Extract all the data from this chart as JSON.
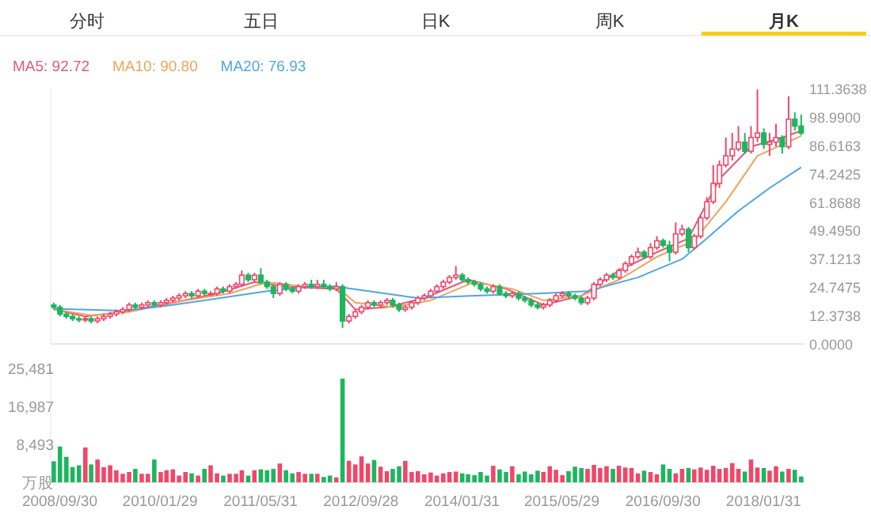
{
  "chart_data": [
    {
      "type": "candlestick",
      "annotations": [
        "分时",
        "五日",
        "日K",
        "周K",
        "月K"
      ],
      "legend": "top left",
      "tick_labels": "y",
      "xlim": [
        "2008-08-17",
        "2018-08-17"
      ],
      "ylim": [
        0,
        111.3638
      ],
      "yticks": [
        {
          "value": 0,
          "label": "0.0000"
        },
        {
          "value": 12.3738,
          "label": "12.3738"
        },
        {
          "value": 24.7475,
          "label": "24.7475"
        },
        {
          "value": 37.1213,
          "label": "37.1213"
        },
        {
          "value": 49.495,
          "label": "49.4950"
        },
        {
          "value": 61.8688,
          "label": "61.8688"
        },
        {
          "value": 74.2425,
          "label": "74.2425"
        },
        {
          "value": 86.6163,
          "label": "86.6163"
        },
        {
          "value": 98.99,
          "label": "98.9900"
        },
        {
          "value": 111.3638,
          "label": "111.3638"
        }
      ],
      "x": [
        "2008-09",
        "2008-10",
        "2008-11",
        "2008-12",
        "2009-01",
        "2009-02",
        "2009-03",
        "2009-04",
        "2009-05",
        "2009-06",
        "2009-07",
        "2009-08",
        "2009-09",
        "2009-10",
        "2009-11",
        "2009-12",
        "2010-01",
        "2010-02",
        "2010-03",
        "2010-04",
        "2010-05",
        "2010-06",
        "2010-07",
        "2010-08",
        "2010-09",
        "2010-10",
        "2010-11",
        "2010-12",
        "2011-01",
        "2011-02",
        "2011-03",
        "2011-04",
        "2011-05",
        "2011-06",
        "2011-07",
        "2011-08",
        "2011-09",
        "2011-10",
        "2011-11",
        "2011-12",
        "2012-01",
        "2012-02",
        "2012-03",
        "2012-04",
        "2012-05",
        "2012-06",
        "2012-07",
        "2012-08",
        "2012-09",
        "2012-10",
        "2012-11",
        "2012-12",
        "2013-01",
        "2013-02",
        "2013-03",
        "2013-04",
        "2013-05",
        "2013-06",
        "2013-07",
        "2013-08",
        "2013-09",
        "2013-10",
        "2013-11",
        "2013-12",
        "2014-01",
        "2014-02",
        "2014-03",
        "2014-04",
        "2014-05",
        "2014-06",
        "2014-07",
        "2014-08",
        "2014-09",
        "2014-10",
        "2014-11",
        "2014-12",
        "2015-01",
        "2015-02",
        "2015-03",
        "2015-04",
        "2015-05",
        "2015-06",
        "2015-07",
        "2015-08",
        "2015-09",
        "2015-10",
        "2015-11",
        "2015-12",
        "2016-01",
        "2016-02",
        "2016-03",
        "2016-04",
        "2016-05",
        "2016-06",
        "2016-07",
        "2016-08",
        "2016-09",
        "2016-10",
        "2016-11",
        "2016-12",
        "2017-01",
        "2017-02",
        "2017-03",
        "2017-04",
        "2017-05",
        "2017-06",
        "2017-07",
        "2017-08",
        "2017-09",
        "2017-10",
        "2017-11",
        "2017-12",
        "2018-01",
        "2018-02",
        "2018-03",
        "2018-04",
        "2018-05",
        "2018-06",
        "2018-07",
        "2018-08"
      ],
      "ohlc": [
        [
          17,
          18,
          15,
          16
        ],
        [
          16,
          17,
          12,
          13
        ],
        [
          13,
          14,
          11,
          12
        ],
        [
          12,
          13,
          10,
          11
        ],
        [
          11,
          12,
          9.5,
          10.5
        ],
        [
          10.5,
          12,
          9.5,
          11
        ],
        [
          11,
          12,
          9,
          10
        ],
        [
          10,
          12,
          9,
          11
        ],
        [
          11,
          13,
          10,
          12
        ],
        [
          12,
          14,
          11,
          13
        ],
        [
          13,
          15,
          12,
          14
        ],
        [
          14,
          16,
          13,
          15
        ],
        [
          15,
          18,
          14,
          17
        ],
        [
          17,
          18,
          15,
          16
        ],
        [
          16,
          18,
          15,
          17
        ],
        [
          17,
          19,
          16,
          18
        ],
        [
          18,
          19,
          16,
          17
        ],
        [
          17,
          19,
          16,
          18
        ],
        [
          18,
          20,
          17,
          19
        ],
        [
          19,
          21,
          18,
          20
        ],
        [
          20,
          22,
          19,
          21
        ],
        [
          21,
          23,
          20,
          22
        ],
        [
          22,
          23,
          20,
          21
        ],
        [
          21,
          24,
          20,
          23
        ],
        [
          23,
          24,
          21,
          22
        ],
        [
          22,
          23,
          21,
          22
        ],
        [
          22,
          25,
          21,
          24
        ],
        [
          24,
          25,
          22,
          23
        ],
        [
          23,
          26,
          22,
          25
        ],
        [
          25,
          27,
          24,
          26
        ],
        [
          26,
          32,
          25,
          30
        ],
        [
          30,
          31,
          27,
          28
        ],
        [
          28,
          31,
          27,
          30
        ],
        [
          30,
          33,
          26,
          27
        ],
        [
          27,
          28,
          24,
          25
        ],
        [
          25,
          26,
          20,
          22
        ],
        [
          22,
          27,
          21,
          26
        ],
        [
          26,
          27,
          23,
          24
        ],
        [
          24,
          25,
          22,
          23
        ],
        [
          23,
          26,
          22,
          25
        ],
        [
          25,
          27,
          24,
          26
        ],
        [
          26,
          28,
          24,
          25
        ],
        [
          25,
          28,
          24,
          26
        ],
        [
          26,
          28,
          24,
          25
        ],
        [
          25,
          26,
          23,
          24
        ],
        [
          24,
          27,
          23,
          25
        ],
        [
          25,
          26,
          7,
          10
        ],
        [
          10,
          13,
          9,
          12
        ],
        [
          12,
          15,
          11,
          14
        ],
        [
          14,
          17,
          13,
          16
        ],
        [
          16,
          19,
          15,
          18
        ],
        [
          18,
          19,
          16,
          17
        ],
        [
          17,
          19,
          16,
          18
        ],
        [
          18,
          20,
          17,
          19
        ],
        [
          19,
          20,
          16,
          17
        ],
        [
          17,
          18,
          14,
          15
        ],
        [
          15,
          17,
          14,
          16
        ],
        [
          16,
          19,
          15,
          18
        ],
        [
          18,
          21,
          17,
          20
        ],
        [
          20,
          22,
          19,
          21
        ],
        [
          21,
          24,
          20,
          23
        ],
        [
          23,
          26,
          22,
          25
        ],
        [
          25,
          28,
          24,
          27
        ],
        [
          27,
          30,
          26,
          29
        ],
        [
          29,
          34,
          28,
          30
        ],
        [
          30,
          31,
          27,
          28
        ],
        [
          28,
          29,
          26,
          27
        ],
        [
          27,
          28,
          25,
          26
        ],
        [
          26,
          27,
          23,
          24
        ],
        [
          24,
          25,
          22,
          23
        ],
        [
          23,
          26,
          22,
          25
        ],
        [
          25,
          26,
          21,
          22
        ],
        [
          22,
          23,
          20,
          21
        ],
        [
          21,
          23,
          20,
          22
        ],
        [
          22,
          23,
          19,
          20
        ],
        [
          20,
          21,
          18,
          19
        ],
        [
          19,
          20,
          16,
          17
        ],
        [
          17,
          18,
          15,
          16
        ],
        [
          16,
          18,
          15,
          17
        ],
        [
          17,
          20,
          16,
          19
        ],
        [
          19,
          22,
          18,
          21
        ],
        [
          21,
          23,
          20,
          22
        ],
        [
          22,
          23,
          20,
          21
        ],
        [
          21,
          22,
          19,
          20
        ],
        [
          20,
          21,
          17,
          18
        ],
        [
          18,
          21,
          17,
          20
        ],
        [
          20,
          27,
          19,
          26
        ],
        [
          26,
          29,
          25,
          28
        ],
        [
          28,
          31,
          27,
          30
        ],
        [
          30,
          31,
          28,
          29
        ],
        [
          29,
          33,
          28,
          32
        ],
        [
          32,
          36,
          31,
          35
        ],
        [
          35,
          39,
          34,
          38
        ],
        [
          38,
          42,
          37,
          40
        ],
        [
          40,
          41,
          37,
          38
        ],
        [
          38,
          44,
          37,
          42
        ],
        [
          42,
          47,
          41,
          45
        ],
        [
          45,
          46,
          42,
          43
        ],
        [
          43,
          45,
          36,
          40
        ],
        [
          40,
          53,
          39,
          48
        ],
        [
          48,
          52,
          47,
          50
        ],
        [
          50,
          51,
          40,
          42
        ],
        [
          42,
          48,
          41,
          47
        ],
        [
          47,
          56,
          46,
          55
        ],
        [
          55,
          64,
          54,
          62
        ],
        [
          62,
          78,
          61,
          70
        ],
        [
          70,
          80,
          68,
          78
        ],
        [
          78,
          90,
          77,
          82
        ],
        [
          82,
          92,
          80,
          85
        ],
        [
          85,
          95,
          84,
          88
        ],
        [
          88,
          92,
          83,
          84
        ],
        [
          84,
          95,
          83,
          90
        ],
        [
          90,
          111,
          88,
          92
        ],
        [
          92,
          94,
          85,
          87
        ],
        [
          87,
          92,
          82,
          88
        ],
        [
          88,
          96,
          86,
          90
        ],
        [
          90,
          91,
          83,
          86
        ],
        [
          86,
          108,
          85,
          98
        ],
        [
          98,
          101,
          93,
          95
        ],
        [
          95,
          100,
          91,
          92
        ]
      ],
      "colors": [
        "#1cb65f",
        "#1cb65f",
        "#1cb65f",
        "#1cb65f",
        "#1cb65f",
        "#f0476a",
        "#1cb65f",
        "#f0476a",
        "#f0476a",
        "#f0476a",
        "#f0476a",
        "#f0476a",
        "#f0476a",
        "#1cb65f",
        "#f0476a",
        "#f0476a",
        "#1cb65f",
        "#f0476a",
        "#f0476a",
        "#f0476a",
        "#f0476a",
        "#f0476a",
        "#1cb65f",
        "#f0476a",
        "#1cb65f",
        "#f0476a",
        "#f0476a",
        "#1cb65f",
        "#f0476a",
        "#f0476a",
        "#f0476a",
        "#1cb65f",
        "#f0476a",
        "#1cb65f",
        "#1cb65f",
        "#1cb65f",
        "#f0476a",
        "#1cb65f",
        "#1cb65f",
        "#f0476a",
        "#f0476a",
        "#1cb65f",
        "#f0476a",
        "#1cb65f",
        "#1cb65f",
        "#f0476a",
        "#1cb65f",
        "#f0476a",
        "#f0476a",
        "#f0476a",
        "#f0476a",
        "#1cb65f",
        "#f0476a",
        "#f0476a",
        "#1cb65f",
        "#1cb65f",
        "#f0476a",
        "#f0476a",
        "#f0476a",
        "#f0476a",
        "#f0476a",
        "#f0476a",
        "#f0476a",
        "#f0476a",
        "#f0476a",
        "#1cb65f",
        "#1cb65f",
        "#1cb65f",
        "#1cb65f",
        "#1cb65f",
        "#f0476a",
        "#1cb65f",
        "#1cb65f",
        "#f0476a",
        "#1cb65f",
        "#1cb65f",
        "#1cb65f",
        "#1cb65f",
        "#f0476a",
        "#f0476a",
        "#f0476a",
        "#f0476a",
        "#1cb65f",
        "#1cb65f",
        "#1cb65f",
        "#f0476a",
        "#f0476a",
        "#f0476a",
        "#f0476a",
        "#1cb65f",
        "#f0476a",
        "#f0476a",
        "#f0476a",
        "#f0476a",
        "#1cb65f",
        "#f0476a",
        "#f0476a",
        "#1cb65f",
        "#1cb65f",
        "#f0476a",
        "#f0476a",
        "#1cb65f",
        "#f0476a",
        "#f0476a",
        "#f0476a",
        "#f0476a",
        "#f0476a",
        "#f0476a",
        "#f0476a",
        "#f0476a",
        "#1cb65f",
        "#f0476a",
        "#f0476a",
        "#1cb65f",
        "#f0476a",
        "#f0476a",
        "#1cb65f",
        "#f0476a",
        "#1cb65f",
        "#1cb65f"
      ],
      "series": [
        {
          "name": "MA5: 92.72",
          "type": "line",
          "marker": "none",
          "color": "#e2587c",
          "x": [
            "2008-09",
            "2009-02",
            "2009-08",
            "2010-04",
            "2010-11",
            "2011-05",
            "2011-10",
            "2012-06",
            "2012-09",
            "2013-02",
            "2013-08",
            "2014-03",
            "2014-09",
            "2015-03",
            "2015-09",
            "2016-03",
            "2016-09",
            "2017-02",
            "2017-07",
            "2017-12",
            "2018-05",
            "2018-08"
          ],
          "values": [
            15.1,
            12,
            14,
            18,
            22,
            27,
            25,
            24,
            15,
            16,
            20,
            28,
            24,
            17,
            21,
            32,
            40,
            46,
            72,
            86,
            90,
            92.9
          ]
        },
        {
          "name": "MA10: 90.80",
          "type": "line",
          "color": "#f0a35a",
          "x": [
            "2008-09",
            "2009-03",
            "2009-09",
            "2010-06",
            "2011-01",
            "2011-07",
            "2012-01",
            "2012-06",
            "2012-09",
            "2013-03",
            "2013-09",
            "2014-04",
            "2014-10",
            "2015-03",
            "2015-09",
            "2016-03",
            "2016-09",
            "2017-03",
            "2017-08",
            "2018-01",
            "2018-08"
          ],
          "values": [
            15.1,
            12.5,
            14,
            19,
            22,
            27,
            25,
            25,
            18,
            16,
            19,
            27,
            24,
            19,
            21,
            28,
            38,
            45,
            62,
            82,
            90.7
          ]
        },
        {
          "name": "MA20: 76.93",
          "type": "line",
          "color": "#4ea6e6",
          "x": [
            "2008-09",
            "2009-08",
            "2010-03",
            "2011-07",
            "2012-02",
            "2012-06",
            "2013-07",
            "2014-04",
            "2015-02",
            "2015-10",
            "2016-06",
            "2017-01",
            "2017-05",
            "2017-10",
            "2018-03",
            "2018-08"
          ],
          "values": [
            15.3,
            14.5,
            16.6,
            23,
            25,
            25,
            20,
            21,
            22,
            23,
            29,
            37,
            46,
            58,
            68,
            77
          ]
        }
      ]
    },
    {
      "type": "bar",
      "xlim": [
        "2008-08-17",
        "2018-08-17"
      ],
      "ylim": [
        0,
        25481
      ],
      "yticks": [
        {
          "value": 0,
          "label": "万股"
        },
        {
          "value": 8493,
          "label": "8,493"
        },
        {
          "value": 16987,
          "label": "16,987"
        },
        {
          "value": 25481,
          "label": "25,481"
        }
      ],
      "xticks": [
        {
          "value": "2008-09-30",
          "label": "2008/09/30"
        },
        {
          "value": "2010-01-29",
          "label": "2010/01/29"
        },
        {
          "value": "2011-05-31",
          "label": "2011/05/31"
        },
        {
          "value": "2012-09-28",
          "label": "2012/09/28"
        },
        {
          "value": "2014-01-31",
          "label": "2014/01/31"
        },
        {
          "value": "2015-05-29",
          "label": "2015/05/29"
        },
        {
          "value": "2016-09-30",
          "label": "2016/09/30"
        },
        {
          "value": "2018-01-31",
          "label": "2018/01/31"
        }
      ],
      "x": [
        "2008-09",
        "2008-10",
        "2008-11",
        "2008-12",
        "2009-01",
        "2009-02",
        "2009-03",
        "2009-04",
        "2009-05",
        "2009-06",
        "2009-07",
        "2009-08",
        "2009-09",
        "2009-10",
        "2009-11",
        "2009-12",
        "2010-01",
        "2010-02",
        "2010-03",
        "2010-04",
        "2010-05",
        "2010-06",
        "2010-07",
        "2010-08",
        "2010-09",
        "2010-10",
        "2010-11",
        "2010-12",
        "2011-01",
        "2011-02",
        "2011-03",
        "2011-04",
        "2011-05",
        "2011-06",
        "2011-07",
        "2011-08",
        "2011-09",
        "2011-10",
        "2011-11",
        "2011-12",
        "2012-01",
        "2012-02",
        "2012-03",
        "2012-04",
        "2012-05",
        "2012-06",
        "2012-07",
        "2012-08",
        "2012-09",
        "2012-10",
        "2012-11",
        "2012-12",
        "2013-01",
        "2013-02",
        "2013-03",
        "2013-04",
        "2013-05",
        "2013-06",
        "2013-07",
        "2013-08",
        "2013-09",
        "2013-10",
        "2013-11",
        "2013-12",
        "2014-01",
        "2014-02",
        "2014-03",
        "2014-04",
        "2014-05",
        "2014-06",
        "2014-07",
        "2014-08",
        "2014-09",
        "2014-10",
        "2014-11",
        "2014-12",
        "2015-01",
        "2015-02",
        "2015-03",
        "2015-04",
        "2015-05",
        "2015-06",
        "2015-07",
        "2015-08",
        "2015-09",
        "2015-10",
        "2015-11",
        "2015-12",
        "2016-01",
        "2016-02",
        "2016-03",
        "2016-04",
        "2016-05",
        "2016-06",
        "2016-07",
        "2016-08",
        "2016-09",
        "2016-10",
        "2016-11",
        "2016-12",
        "2017-01",
        "2017-02",
        "2017-03",
        "2017-04",
        "2017-05",
        "2017-06",
        "2017-07",
        "2017-08",
        "2017-09",
        "2017-10",
        "2017-11",
        "2017-12",
        "2018-01",
        "2018-02",
        "2018-03",
        "2018-04",
        "2018-05",
        "2018-06",
        "2018-07",
        "2018-08"
      ],
      "values": [
        4700,
        8000,
        5700,
        3400,
        3800,
        7800,
        4000,
        5100,
        3400,
        3800,
        2700,
        1900,
        2300,
        3000,
        1900,
        1900,
        5100,
        2300,
        2700,
        2900,
        1500,
        2300,
        2000,
        1500,
        3000,
        3800,
        2000,
        1500,
        1900,
        1900,
        2700,
        1500,
        2700,
        2900,
        2700,
        3000,
        4200,
        2700,
        2000,
        2300,
        1900,
        1900,
        1900,
        1200,
        1500,
        1100,
        23200,
        4800,
        4000,
        5800,
        4200,
        5000,
        3500,
        2500,
        3000,
        3600,
        4800,
        2300,
        2500,
        1800,
        2200,
        1500,
        2000,
        2300,
        2400,
        2000,
        1800,
        1600,
        2300,
        1500,
        3700,
        2900,
        2300,
        3600,
        1800,
        2400,
        1800,
        2600,
        2300,
        3600,
        2800,
        1600,
        2500,
        3500,
        3200,
        3000,
        3900,
        3200,
        3600,
        3000,
        3700,
        3300,
        3200,
        2000,
        2600,
        2300,
        1800,
        4000,
        3000,
        2000,
        3000,
        3200,
        2900,
        3300,
        2800,
        3700,
        3000,
        3200,
        4300,
        3000,
        2400,
        5100,
        3300,
        3200,
        2600,
        3600,
        2400,
        3000,
        2800,
        1300
      ],
      "colors": [
        "#1cb65f",
        "#1cb65f",
        "#1cb65f",
        "#1cb65f",
        "#1cb65f",
        "#f0476a",
        "#1cb65f",
        "#f0476a",
        "#f0476a",
        "#f0476a",
        "#f0476a",
        "#f0476a",
        "#f0476a",
        "#1cb65f",
        "#f0476a",
        "#f0476a",
        "#1cb65f",
        "#f0476a",
        "#f0476a",
        "#f0476a",
        "#f0476a",
        "#f0476a",
        "#1cb65f",
        "#f0476a",
        "#1cb65f",
        "#f0476a",
        "#f0476a",
        "#1cb65f",
        "#f0476a",
        "#f0476a",
        "#f0476a",
        "#1cb65f",
        "#f0476a",
        "#1cb65f",
        "#1cb65f",
        "#1cb65f",
        "#f0476a",
        "#1cb65f",
        "#1cb65f",
        "#f0476a",
        "#f0476a",
        "#1cb65f",
        "#f0476a",
        "#1cb65f",
        "#1cb65f",
        "#f0476a",
        "#1cb65f",
        "#f0476a",
        "#f0476a",
        "#f0476a",
        "#f0476a",
        "#1cb65f",
        "#f0476a",
        "#f0476a",
        "#1cb65f",
        "#1cb65f",
        "#f0476a",
        "#f0476a",
        "#f0476a",
        "#f0476a",
        "#f0476a",
        "#f0476a",
        "#f0476a",
        "#f0476a",
        "#f0476a",
        "#1cb65f",
        "#1cb65f",
        "#1cb65f",
        "#1cb65f",
        "#1cb65f",
        "#f0476a",
        "#1cb65f",
        "#1cb65f",
        "#f0476a",
        "#1cb65f",
        "#1cb65f",
        "#1cb65f",
        "#1cb65f",
        "#f0476a",
        "#f0476a",
        "#f0476a",
        "#f0476a",
        "#1cb65f",
        "#1cb65f",
        "#1cb65f",
        "#f0476a",
        "#f0476a",
        "#f0476a",
        "#f0476a",
        "#1cb65f",
        "#f0476a",
        "#f0476a",
        "#f0476a",
        "#f0476a",
        "#1cb65f",
        "#f0476a",
        "#f0476a",
        "#1cb65f",
        "#1cb65f",
        "#f0476a",
        "#f0476a",
        "#1cb65f",
        "#f0476a",
        "#f0476a",
        "#f0476a",
        "#f0476a",
        "#f0476a",
        "#f0476a",
        "#f0476a",
        "#f0476a",
        "#1cb65f",
        "#f0476a",
        "#f0476a",
        "#1cb65f",
        "#f0476a",
        "#f0476a",
        "#1cb65f",
        "#f0476a",
        "#1cb65f",
        "#1cb65f"
      ]
    }
  ]
}
